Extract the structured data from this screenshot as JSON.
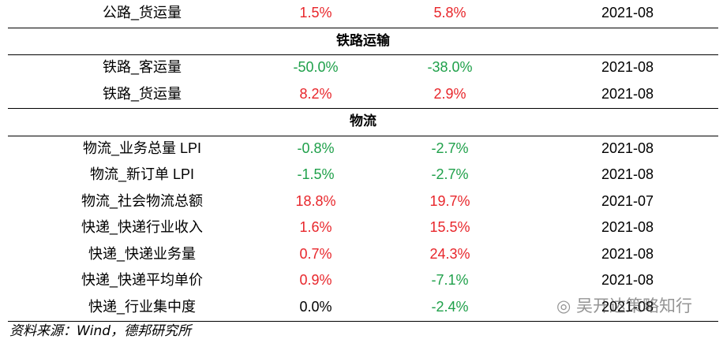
{
  "table": {
    "rows": [
      {
        "kind": "row",
        "name": "公路_货运量",
        "cells": [
          "1.5%",
          "5.8%"
        ],
        "tones": [
          "up",
          "up"
        ],
        "date": "2021-08"
      },
      {
        "kind": "section",
        "name": "铁路运输"
      },
      {
        "kind": "row",
        "name": "铁路_客运量",
        "cells": [
          "-50.0%",
          "-38.0%"
        ],
        "tones": [
          "down",
          "down"
        ],
        "date": "2021-08"
      },
      {
        "kind": "row",
        "name": "铁路_货运量",
        "cells": [
          "8.2%",
          "2.9%"
        ],
        "tones": [
          "up",
          "up"
        ],
        "date": "2021-08"
      },
      {
        "kind": "section",
        "name": "物流"
      },
      {
        "kind": "row",
        "name": "物流_业务总量 LPI",
        "cells": [
          "-0.8%",
          "-2.7%"
        ],
        "tones": [
          "down",
          "down"
        ],
        "date": "2021-08"
      },
      {
        "kind": "row",
        "name": "物流_新订单 LPI",
        "cells": [
          "-1.5%",
          "-2.7%"
        ],
        "tones": [
          "down",
          "down"
        ],
        "date": "2021-08"
      },
      {
        "kind": "row",
        "name": "物流_社会物流总额",
        "cells": [
          "18.8%",
          "19.7%"
        ],
        "tones": [
          "up",
          "up"
        ],
        "date": "2021-07"
      },
      {
        "kind": "row",
        "name": "快递_快递行业收入",
        "cells": [
          "1.6%",
          "15.5%"
        ],
        "tones": [
          "up",
          "up"
        ],
        "date": "2021-08"
      },
      {
        "kind": "row",
        "name": "快递_快递业务量",
        "cells": [
          "0.7%",
          "24.3%"
        ],
        "tones": [
          "up",
          "up"
        ],
        "date": "2021-08"
      },
      {
        "kind": "row",
        "name": "快递_快递平均单价",
        "cells": [
          "0.9%",
          "-7.1%"
        ],
        "tones": [
          "up",
          "down"
        ],
        "date": "2021-08"
      },
      {
        "kind": "row",
        "name": "快递_行业集中度",
        "cells": [
          "0.0%",
          "-2.4%"
        ],
        "tones": [
          "flat",
          "down"
        ],
        "date": "2021-08"
      }
    ],
    "palette": {
      "up": "#e8262b",
      "down": "#1fa04a",
      "flat": "#000000"
    }
  },
  "source": "资料来源：Wind，德邦研究所",
  "watermark": "吴开达策略知行"
}
